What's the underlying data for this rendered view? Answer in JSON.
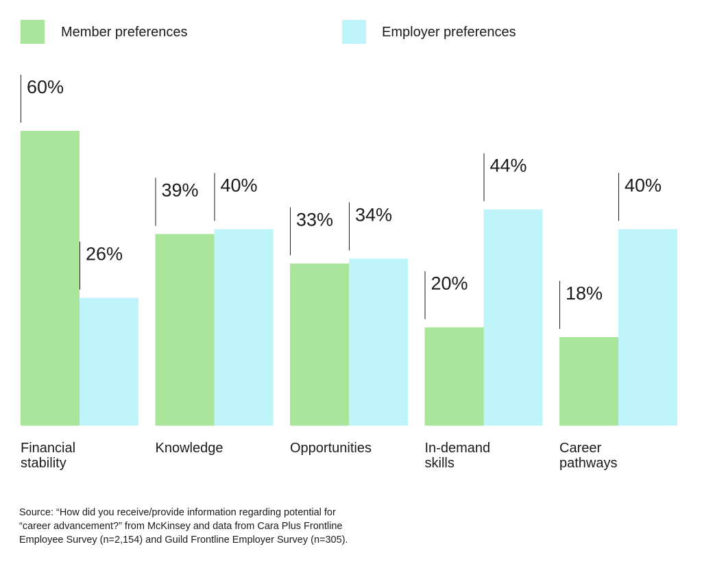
{
  "chart_data": {
    "type": "bar",
    "categories": [
      [
        "Financial",
        "stability"
      ],
      [
        "Knowledge"
      ],
      [
        "Opportunities"
      ],
      [
        "In-demand",
        "skills"
      ],
      [
        "Career",
        "pathways"
      ]
    ],
    "series": [
      {
        "name": "Member preferences",
        "color": "#a9e59b",
        "values": [
          60,
          39,
          33,
          20,
          18
        ]
      },
      {
        "name": "Employer preferences",
        "color": "#bff4fb",
        "values": [
          26,
          40,
          34,
          44,
          40
        ]
      }
    ],
    "value_suffix": "%",
    "ylim": [
      0,
      60
    ],
    "grid": false,
    "legend": "top"
  },
  "source": {
    "lines": [
      "Source: “How did you receive/provide information regarding potential for",
      "“career advancement?” from McKinsey and data from Cara Plus Frontline",
      "Employee Survey (n=2,154) and Guild Frontline Employer Survey (n=305)."
    ]
  }
}
